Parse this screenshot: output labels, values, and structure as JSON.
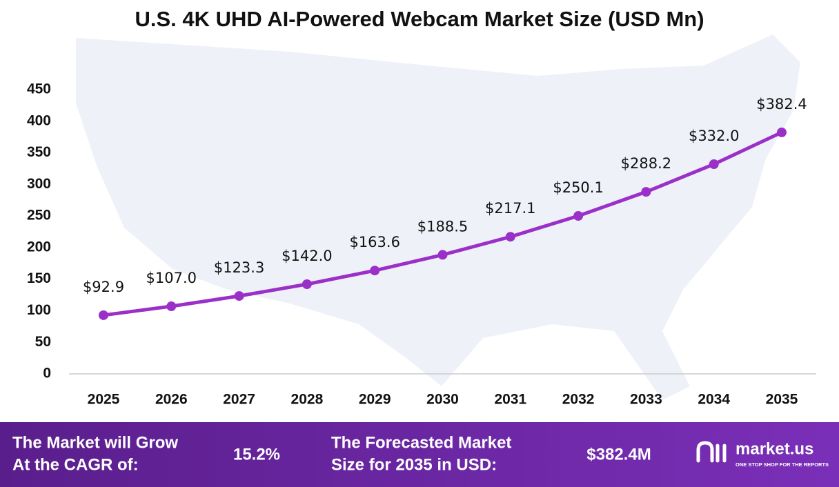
{
  "chart_data": {
    "type": "line",
    "title": "U.S. 4K UHD AI-Powered Webcam Market Size (USD Mn)",
    "categories": [
      "2025",
      "2026",
      "2027",
      "2028",
      "2029",
      "2030",
      "2031",
      "2032",
      "2033",
      "2034",
      "2035"
    ],
    "series": [
      {
        "color": "#9b30c8",
        "values": [
          92.9,
          107.0,
          123.3,
          142.0,
          163.6,
          188.5,
          217.1,
          250.1,
          288.2,
          332.0,
          382.4
        ],
        "value_labels": [
          "$92.9",
          "$107.0",
          "$123.3",
          "$142.0",
          "$163.6",
          "$188.5",
          "$217.1",
          "$250.1",
          "$288.2",
          "$332.0",
          "$382.4"
        ]
      }
    ],
    "ylim": [
      0,
      450
    ],
    "yticks": [
      0,
      50,
      100,
      150,
      200,
      250,
      300,
      350,
      400,
      450
    ],
    "grid": false
  },
  "footer": {
    "cagr_label": [
      "The Market will Grow",
      "At the CAGR of:"
    ],
    "cagr_value": "15.2%",
    "size_label": [
      "The Forecasted Market",
      "Size for 2035 in USD:"
    ],
    "size_value": "$382.4M",
    "brand": "market.us",
    "tagline": "ONE STOP SHOP FOR THE REPORTS"
  }
}
